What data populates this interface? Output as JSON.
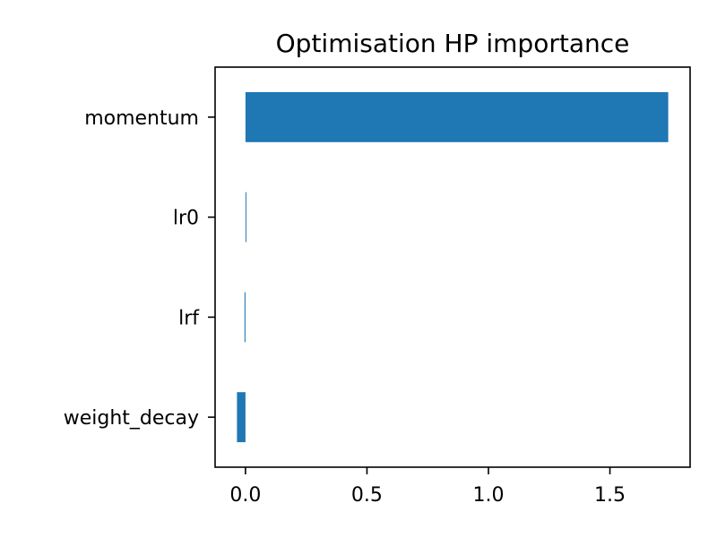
{
  "chart_data": {
    "type": "bar",
    "orientation": "horizontal",
    "title": "Optimisation HP importance",
    "xlabel": "",
    "ylabel": "",
    "categories": [
      "momentum",
      "lr0",
      "lrf",
      "weight_decay"
    ],
    "values": [
      1.74,
      0.002,
      -0.004,
      -0.035
    ],
    "xlim": [
      -0.125,
      1.83
    ],
    "xticks": [
      0.0,
      0.5,
      1.0,
      1.5
    ],
    "xtick_labels": [
      "0.0",
      "0.5",
      "1.0",
      "1.5"
    ],
    "bar_color": "#1f77b4",
    "grid": false
  }
}
